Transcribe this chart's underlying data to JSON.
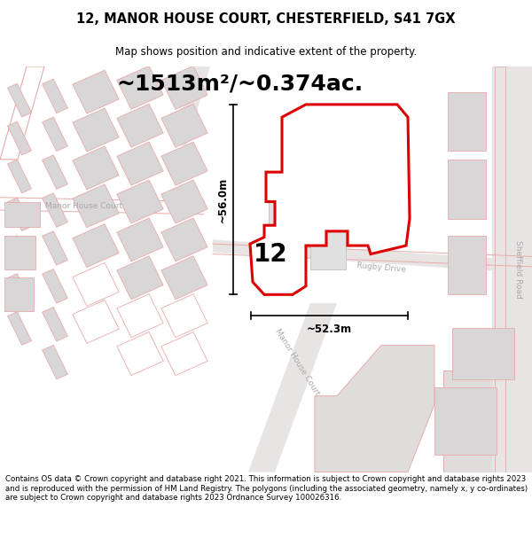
{
  "title": "12, MANOR HOUSE COURT, CHESTERFIELD, S41 7GX",
  "subtitle": "Map shows position and indicative extent of the property.",
  "area_label": "~1513m²/~0.374ac.",
  "number_label": "12",
  "dim_horizontal": "~52.3m",
  "dim_vertical": "~56.0m",
  "street_right": "Sheffield Road",
  "street_bottom": "Manor House Court",
  "street_rugby": "Rugby Drive",
  "street_left": "Manor House Court",
  "footer": "Contains OS data © Crown copyright and database right 2021. This information is subject to Crown copyright and database rights 2023 and is reproduced with the permission of HM Land Registry. The polygons (including the associated geometry, namely x, y co-ordinates) are subject to Crown copyright and database rights 2023 Ordnance Survey 100026316.",
  "red": "#dd0000",
  "light_red": "#e8aaaa",
  "pink_road": "#f0c0c0",
  "gray_bldg": "#d8d6d6",
  "map_bg": "#f0eeee",
  "white": "#ffffff",
  "road_bg": "#e8e4e4"
}
